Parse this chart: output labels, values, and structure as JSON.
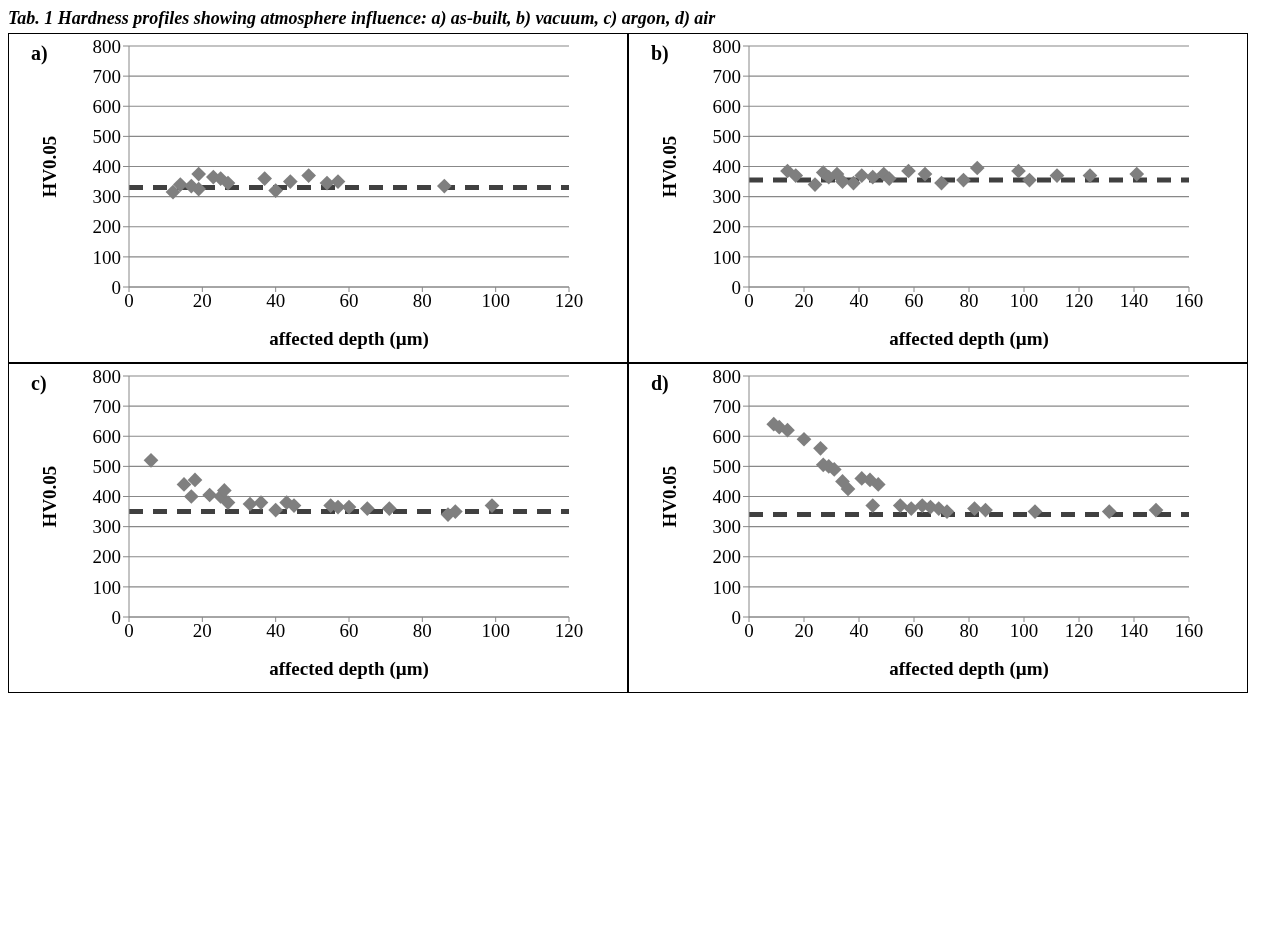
{
  "chart_data": [
    {
      "type": "scatter",
      "title": "a)",
      "annotations": [
        "Tab. 1 Hardness profiles showing atmosphere influence: a) as-built, b) vacuum, c) argon, d) air"
      ],
      "xlabel": "affected depth (µm)",
      "ylabel": "HV0.05",
      "xlim": [
        0,
        120
      ],
      "xticks": [
        0,
        20,
        40,
        60,
        80,
        100,
        120
      ],
      "ylim": [
        0,
        800
      ],
      "yticks": [
        0,
        100,
        200,
        300,
        400,
        500,
        600,
        700,
        800
      ],
      "grid": "y",
      "marker": "diamond",
      "legend": false,
      "series": [
        {
          "color": "#7f7f7f",
          "x": [
            12,
            14,
            17,
            19,
            19,
            23,
            25,
            27,
            37,
            40,
            44,
            49,
            54,
            57,
            86
          ],
          "values": [
            315,
            340,
            335,
            375,
            325,
            365,
            360,
            345,
            360,
            320,
            350,
            370,
            345,
            350,
            335
          ]
        }
      ],
      "ref_lines": [
        {
          "axis": "y",
          "value": 330,
          "color": "#404040",
          "line_style": "dashed"
        }
      ]
    },
    {
      "type": "scatter",
      "title": "b)",
      "xlabel": "affected depth (µm)",
      "ylabel": "HV0.05",
      "xlim": [
        0,
        160
      ],
      "xticks": [
        0,
        20,
        40,
        60,
        80,
        100,
        120,
        140,
        160
      ],
      "ylim": [
        0,
        800
      ],
      "yticks": [
        0,
        100,
        200,
        300,
        400,
        500,
        600,
        700,
        800
      ],
      "grid": "y",
      "marker": "diamond",
      "legend": false,
      "series": [
        {
          "color": "#7f7f7f",
          "x": [
            14,
            17,
            24,
            27,
            29,
            32,
            34,
            38,
            41,
            45,
            49,
            51,
            58,
            64,
            70,
            78,
            83,
            98,
            102,
            112,
            124,
            141
          ],
          "values": [
            385,
            370,
            340,
            380,
            365,
            375,
            350,
            345,
            370,
            365,
            375,
            360,
            385,
            375,
            345,
            355,
            395,
            385,
            355,
            370,
            370,
            375
          ]
        }
      ],
      "ref_lines": [
        {
          "axis": "y",
          "value": 355,
          "color": "#404040",
          "line_style": "dashed"
        }
      ]
    },
    {
      "type": "scatter",
      "title": "c)",
      "xlabel": "affected depth (µm)",
      "ylabel": "HV0.05",
      "xlim": [
        0,
        120
      ],
      "xticks": [
        0,
        20,
        40,
        60,
        80,
        100,
        120
      ],
      "ylim": [
        0,
        800
      ],
      "yticks": [
        0,
        100,
        200,
        300,
        400,
        500,
        600,
        700,
        800
      ],
      "grid": "y",
      "marker": "diamond",
      "legend": false,
      "series": [
        {
          "color": "#7f7f7f",
          "x": [
            6,
            15,
            17,
            18,
            22,
            25,
            26,
            27,
            33,
            36,
            40,
            43,
            45,
            55,
            57,
            60,
            65,
            71,
            87,
            89,
            99
          ],
          "values": [
            520,
            440,
            400,
            455,
            405,
            400,
            420,
            380,
            375,
            380,
            355,
            380,
            370,
            370,
            365,
            365,
            360,
            360,
            340,
            350,
            370
          ]
        }
      ],
      "ref_lines": [
        {
          "axis": "y",
          "value": 350,
          "color": "#404040",
          "line_style": "dashed"
        }
      ]
    },
    {
      "type": "scatter",
      "title": "d)",
      "xlabel": "affected depth (µm)",
      "ylabel": "HV0.05",
      "xlim": [
        0,
        160
      ],
      "xticks": [
        0,
        20,
        40,
        60,
        80,
        100,
        120,
        140,
        160
      ],
      "ylim": [
        0,
        800
      ],
      "yticks": [
        0,
        100,
        200,
        300,
        400,
        500,
        600,
        700,
        800
      ],
      "grid": "y",
      "marker": "diamond",
      "legend": false,
      "series": [
        {
          "color": "#7f7f7f",
          "x": [
            9,
            11,
            14,
            20,
            26,
            27,
            29,
            31,
            34,
            36,
            41,
            44,
            45,
            47,
            55,
            59,
            63,
            66,
            69,
            72,
            82,
            86,
            104,
            131,
            148
          ],
          "values": [
            640,
            630,
            620,
            590,
            560,
            505,
            500,
            490,
            450,
            425,
            460,
            455,
            370,
            440,
            370,
            360,
            370,
            365,
            360,
            350,
            360,
            355,
            350,
            350,
            355
          ]
        }
      ],
      "ref_lines": [
        {
          "axis": "y",
          "value": 340,
          "color": "#404040",
          "line_style": "dashed"
        }
      ]
    }
  ]
}
